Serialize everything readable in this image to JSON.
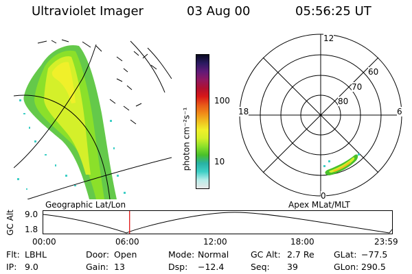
{
  "header": {
    "instrument": "Ultraviolet Imager",
    "date": "03 Aug 00",
    "time": "05:56:25 UT"
  },
  "left_panel": {
    "caption": "Geographic Lat/Lon"
  },
  "colorbar": {
    "unit_label": "photon cm⁻²s⁻¹",
    "tick_labels": [
      "100",
      "10"
    ],
    "colors": [
      "#e8e8e8",
      "#b7ede9",
      "#3ecfc6",
      "#28b2a4",
      "#49c02a",
      "#8be02a",
      "#d4f02a",
      "#f0f02a",
      "#f0c020",
      "#f08a18",
      "#e85818",
      "#d81818",
      "#b01030",
      "#901860",
      "#601a78",
      "#2a1a60",
      "#0a0a20"
    ]
  },
  "right_panel": {
    "caption": "Apex MLat/MLT",
    "mlt_labels": {
      "top": "12",
      "left": "18",
      "right": "6",
      "bottom": "0"
    },
    "mlat_labels": [
      "60",
      "70",
      "80"
    ]
  },
  "altitude_plot": {
    "ylabel": "GC Alt",
    "yticks": [
      "9.0",
      "1.8"
    ],
    "xticks": [
      "00:00",
      "06:00",
      "12:00",
      "18:00",
      "23:59"
    ],
    "marker_hour": 5.94
  },
  "info": {
    "flt_label": "Flt:",
    "flt_value": "LBHL",
    "door_label": "Door:",
    "door_value": "Open",
    "mode_label": "Mode:",
    "mode_value": "Normal",
    "gcalt_label": "GC Alt:",
    "gcalt_value": "2.7 Re",
    "glat_label": "GLat:",
    "glat_value": "−77.5",
    "ip_label": "IP:",
    "ip_value": "9.0",
    "gain_label": "Gain:",
    "gain_value": "13",
    "dsp_label": "Dsp:",
    "dsp_value": "−12.4",
    "seq_label": "Seq:",
    "seq_value": "39",
    "glon_label": "GLon:",
    "glon_value": "290.5"
  }
}
